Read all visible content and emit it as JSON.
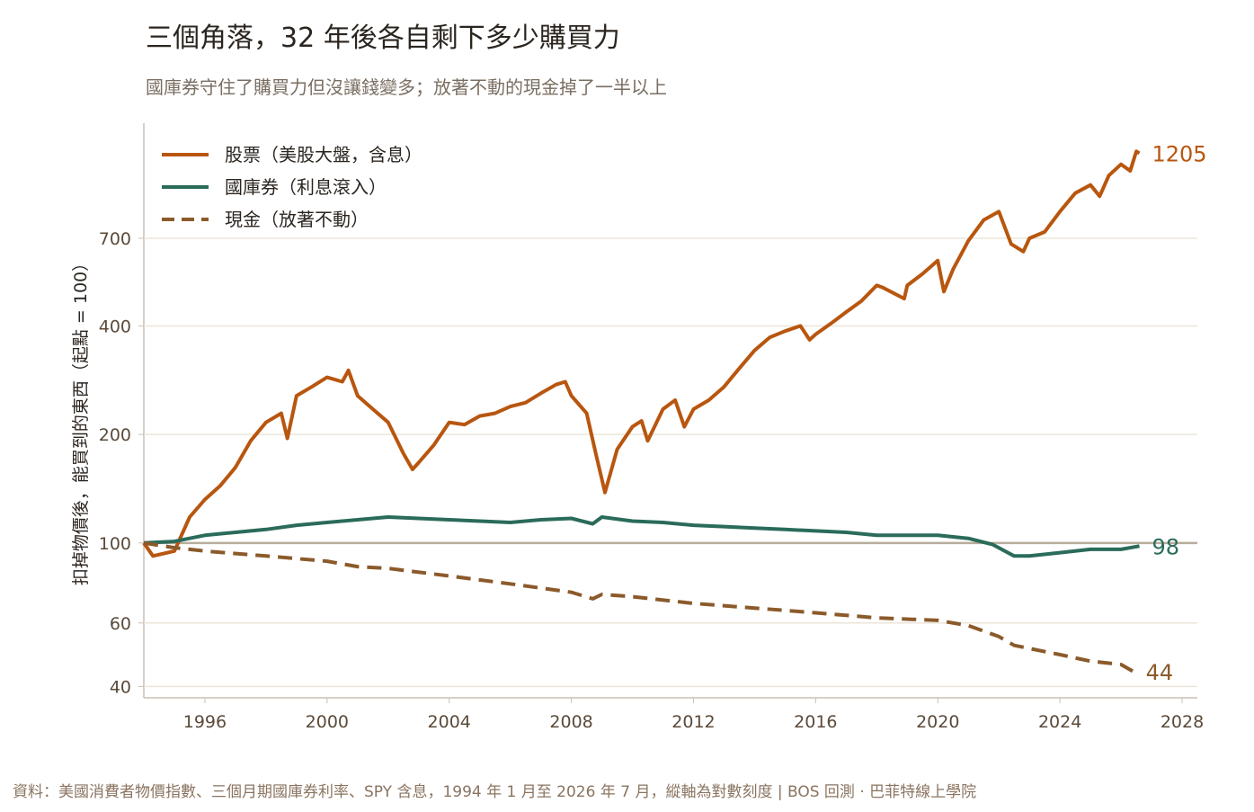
{
  "chart_data": {
    "type": "line",
    "title": "三個角落，32 年後各自剩下多少購買力",
    "subtitle": "國庫券守住了購買力但沒讓錢變多；放著不動的現金掉了一半以上",
    "ylabel": "扣掉物價後，能買到的東西（起點 = 100）",
    "source": "資料：美國消費者物價指數、三個月期國庫券利率、SPY 含息，1994 年 1 月至 2026 年 7 月，縱軸為對數刻度 | BOS 回測 ·  巴菲特線上學院",
    "log_y": true,
    "grid": true,
    "legend": "upper left",
    "reference_line": 100,
    "xlim": [
      1994,
      2028.5
    ],
    "xticks": [
      1996,
      2000,
      2004,
      2008,
      2012,
      2016,
      2020,
      2024,
      2028
    ],
    "ylim": [
      37.2,
      1460
    ],
    "yticks": [
      40,
      60,
      100,
      200,
      400,
      700
    ],
    "series": [
      {
        "name": "股票（美股大盤，含息）",
        "color": "#b8560f",
        "dash": false,
        "x": [
          1994.0,
          1994.3,
          1995.0,
          1995.5,
          1996.0,
          1996.5,
          1997.0,
          1997.5,
          1998.0,
          1998.5,
          1998.7,
          1999.0,
          1999.5,
          2000.0,
          2000.5,
          2000.7,
          2001.0,
          2001.5,
          2002.0,
          2002.5,
          2002.8,
          2003.0,
          2003.5,
          2004.0,
          2004.5,
          2005.0,
          2005.5,
          2006.0,
          2006.5,
          2007.0,
          2007.5,
          2007.8,
          2008.0,
          2008.5,
          2008.8,
          2009.1,
          2009.5,
          2010.0,
          2010.3,
          2010.5,
          2011.0,
          2011.4,
          2011.7,
          2012.0,
          2012.5,
          2013.0,
          2013.5,
          2014.0,
          2014.5,
          2015.0,
          2015.5,
          2015.8,
          2016.0,
          2016.5,
          2017.0,
          2017.5,
          2018.0,
          2018.2,
          2018.9,
          2019.0,
          2019.5,
          2020.0,
          2020.2,
          2020.5,
          2021.0,
          2021.5,
          2022.0,
          2022.4,
          2022.8,
          2023.0,
          2023.5,
          2024.0,
          2024.5,
          2025.0,
          2025.3,
          2025.6,
          2026.0,
          2026.3,
          2026.5,
          2026.6
        ],
        "values": [
          100,
          92,
          95,
          118,
          132,
          144,
          162,
          192,
          216,
          229,
          195,
          256,
          271,
          288,
          280,
          301,
          256,
          235,
          216,
          177,
          160,
          167,
          187,
          216,
          213,
          225,
          229,
          239,
          245,
          260,
          275,
          280,
          256,
          229,
          177,
          138,
          182,
          210,
          218,
          192,
          235,
          249,
          210,
          235,
          249,
          271,
          305,
          342,
          372,
          387,
          400,
          366,
          379,
          406,
          437,
          469,
          518,
          511,
          476,
          518,
          558,
          607,
          498,
          574,
          689,
          786,
          830,
          675,
          643,
          700,
          729,
          830,
          934,
          984,
          916,
          1045,
          1123,
          1077,
          1220,
          1205
        ],
        "end_label": "1205"
      },
      {
        "name": "國庫券（利息滾入）",
        "color": "#2a6b5a",
        "dash": false,
        "x": [
          1994.0,
          1995.0,
          1996.0,
          1997.0,
          1998.0,
          1999.0,
          2000.0,
          2001.0,
          2002.0,
          2003.0,
          2004.0,
          2005.0,
          2006.0,
          2007.0,
          2008.0,
          2008.7,
          2009.0,
          2010.0,
          2011.0,
          2012.0,
          2013.0,
          2014.0,
          2015.0,
          2016.0,
          2017.0,
          2018.0,
          2019.0,
          2020.0,
          2021.0,
          2021.8,
          2022.5,
          2023.0,
          2024.0,
          2025.0,
          2026.0,
          2026.6
        ],
        "values": [
          100,
          101,
          105,
          107,
          109,
          112,
          114,
          116,
          118,
          117,
          116,
          115,
          114,
          116,
          117,
          113,
          118,
          115,
          114,
          112,
          111,
          110,
          109,
          108,
          107,
          105,
          105,
          105,
          103,
          99,
          92,
          92,
          94,
          96,
          96,
          98
        ],
        "end_label": "98"
      },
      {
        "name": "現金（放著不動）",
        "color": "#8b5a2b",
        "dash": true,
        "x": [
          1994.0,
          1995.0,
          1996.0,
          1998.0,
          2000.0,
          2001.0,
          2002.0,
          2004.0,
          2006.0,
          2008.0,
          2008.7,
          2009.0,
          2010.0,
          2012.0,
          2014.0,
          2016.0,
          2018.0,
          2020.0,
          2021.0,
          2022.0,
          2022.5,
          2024.0,
          2025.0,
          2026.0,
          2026.4
        ],
        "values": [
          100,
          97,
          95,
          92,
          89,
          86,
          85,
          81,
          77,
          73,
          70,
          72,
          71,
          68,
          66,
          64,
          62,
          61,
          59,
          55,
          52,
          49,
          47,
          46,
          44
        ],
        "end_label": "44"
      }
    ]
  }
}
